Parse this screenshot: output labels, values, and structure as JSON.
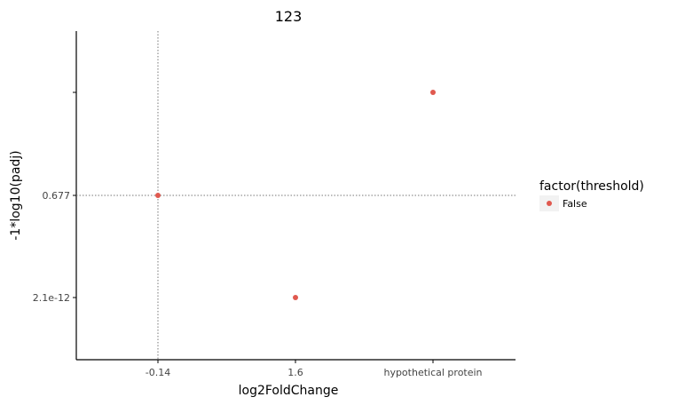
{
  "chart_data": {
    "type": "scatter",
    "title": "123",
    "xlabel": "log2FoldChange",
    "ylabel": "-1*log10(padj)",
    "x_categories": [
      "-0.14",
      "1.6",
      "hypothetical protein"
    ],
    "y_categories": [
      "2.1e-12",
      "0.677",
      ""
    ],
    "y_tick_labels_shown": [
      "2.1e-12",
      "0.677"
    ],
    "points": [
      {
        "x": "-0.14",
        "y": "0.677",
        "series": "False"
      },
      {
        "x": "1.6",
        "y": "2.1e-12",
        "series": "False"
      },
      {
        "x": "hypothetical protein",
        "y": "",
        "series": "False"
      }
    ],
    "reference_lines": {
      "x": "-0.14",
      "y": "0.677"
    },
    "legend": {
      "title": "factor(threshold)",
      "entries": [
        {
          "label": "False",
          "color": "#e0594f"
        }
      ],
      "position": "right"
    },
    "grid": false
  }
}
